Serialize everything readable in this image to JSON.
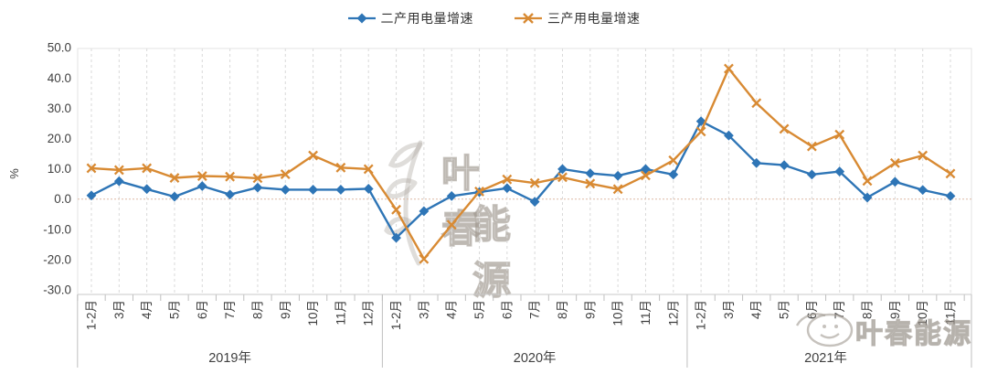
{
  "legend": {
    "items": [
      {
        "label": "二产用电量增速",
        "marker": "diamond"
      },
      {
        "label": "三产用电量增速",
        "marker": "x"
      }
    ]
  },
  "y_axis": {
    "title": "%",
    "ticks": [
      "50.0",
      "40.0",
      "30.0",
      "20.0",
      "10.0",
      "0.0",
      "-10.0",
      "-20.0",
      "-30.0"
    ]
  },
  "watermark": {
    "center_line1": "叶春",
    "center_line2": "能源",
    "corner": "叶春能源"
  },
  "chart_data": {
    "type": "line",
    "title": "",
    "ylabel": "%",
    "ylim": [
      -30,
      50
    ],
    "grid": "vertical-dashed",
    "legend_position": "top-center",
    "x_labels": [
      "1-2月",
      "3月",
      "4月",
      "5月",
      "6月",
      "7月",
      "8月",
      "9月",
      "10月",
      "11月",
      "12月",
      "1-2月",
      "3月",
      "4月",
      "5月",
      "6月",
      "7月",
      "8月",
      "9月",
      "10月",
      "11月",
      "12月",
      "1-2月",
      "3月",
      "4月",
      "5月",
      "6月",
      "7月",
      "8月",
      "9月",
      "10月",
      "11月"
    ],
    "year_groups": [
      {
        "label": "2019年",
        "months": 11
      },
      {
        "label": "2020年",
        "months": 11
      },
      {
        "label": "2021年",
        "months": 10
      }
    ],
    "series": [
      {
        "name": "二产用电量增速",
        "color": "#2E75B6",
        "marker": "diamond",
        "values": [
          1.2,
          5.9,
          3.3,
          0.8,
          4.3,
          1.5,
          3.8,
          3.1,
          3.1,
          3.1,
          3.4,
          -12.8,
          -4.0,
          1.0,
          2.3,
          3.6,
          -0.9,
          9.9,
          8.5,
          7.7,
          9.9,
          8.1,
          25.7,
          21.0,
          11.9,
          11.2,
          8.1,
          9.1,
          0.5,
          5.7,
          3.0,
          1.0
        ]
      },
      {
        "name": "三产用电量增速",
        "color": "#D88A33",
        "marker": "x",
        "values": [
          10.2,
          9.6,
          10.2,
          7.0,
          7.6,
          7.4,
          6.9,
          8.2,
          14.4,
          10.4,
          9.9,
          -3.5,
          -19.8,
          -8.5,
          2.5,
          6.5,
          5.3,
          7.2,
          5.1,
          3.3,
          7.8,
          12.8,
          22.3,
          43.1,
          31.7,
          23.2,
          17.4,
          21.3,
          6.0,
          11.9,
          14.4,
          8.4
        ]
      }
    ]
  }
}
